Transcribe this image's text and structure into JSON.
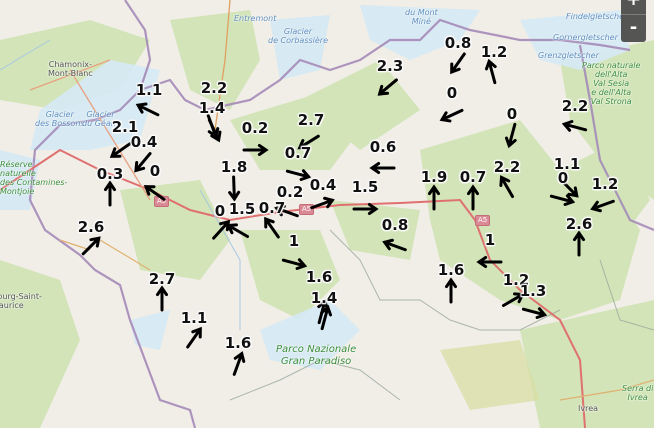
{
  "map": {
    "zoom_in_label": "+",
    "zoom_out_label": "-",
    "places": [
      {
        "name": "Chamonix-\nMont-Blanc",
        "kind": "town"
      },
      {
        "name": "Entremont",
        "kind": "water"
      },
      {
        "name": "Glacier\nde Corbassière",
        "kind": "water"
      },
      {
        "name": "du Mont\nMiné",
        "kind": "water"
      },
      {
        "name": "Findelgletscher",
        "kind": "water"
      },
      {
        "name": "Gornergletscher",
        "kind": "water"
      },
      {
        "name": "Grenzgletscher",
        "kind": "water"
      },
      {
        "name": "Parco naturale\ndell'Alta\nVal Sesia\ne dell'Alta\nVal Strona",
        "kind": "park"
      },
      {
        "name": "Glacier\ndes Bossons",
        "kind": "water"
      },
      {
        "name": "Glacier\ndu Géant",
        "kind": "water"
      },
      {
        "name": "Réserve\nnaturelle\ndes Contamines-\nMontjoie",
        "kind": "park"
      },
      {
        "name": "Bourg-Saint-\nMaurice",
        "kind": "town"
      },
      {
        "name": "Parco Nazionale\nGran Paradiso",
        "kind": "park"
      },
      {
        "name": "Serra di\nIvrea",
        "kind": "park"
      },
      {
        "name": "Ivrea",
        "kind": "town"
      }
    ],
    "road_shields": [
      "A5",
      "A5",
      "A5"
    ],
    "arrow_color": "#000000",
    "wind_markers": [
      {
        "value": "1.1",
        "direction_deg": 206
      },
      {
        "value": "2.2",
        "direction_deg": 70
      },
      {
        "value": "1.4",
        "direction_deg": 65
      },
      {
        "value": "0.2",
        "direction_deg": 0
      },
      {
        "value": "2.7",
        "direction_deg": 148
      },
      {
        "value": "0.7",
        "direction_deg": 15
      },
      {
        "value": "2.1",
        "direction_deg": 145
      },
      {
        "value": "0.4",
        "direction_deg": 130
      },
      {
        "value": "0",
        "direction_deg": 215
      },
      {
        "value": "0.3",
        "direction_deg": 270
      },
      {
        "value": "2.6",
        "direction_deg": 315
      },
      {
        "value": "1.8",
        "direction_deg": 88
      },
      {
        "value": "0",
        "direction_deg": 312
      },
      {
        "value": "1.5",
        "direction_deg": 210
      },
      {
        "value": "0.7",
        "direction_deg": 235
      },
      {
        "value": "0.2",
        "direction_deg": 200
      },
      {
        "value": "0.4",
        "direction_deg": 340
      },
      {
        "value": "1.5",
        "direction_deg": 0
      },
      {
        "value": "0.6",
        "direction_deg": 180
      },
      {
        "value": "2.3",
        "direction_deg": 140
      },
      {
        "value": "0.8",
        "direction_deg": 125
      },
      {
        "value": "1.2",
        "direction_deg": 255
      },
      {
        "value": "0",
        "direction_deg": 155
      },
      {
        "value": "0",
        "direction_deg": 105
      },
      {
        "value": "2.2",
        "direction_deg": 195
      },
      {
        "value": "1.9",
        "direction_deg": 270
      },
      {
        "value": "0.7",
        "direction_deg": 270
      },
      {
        "value": "2.2",
        "direction_deg": 240
      },
      {
        "value": "1.1",
        "direction_deg": 45
      },
      {
        "value": "0",
        "direction_deg": 15
      },
      {
        "value": "1.2",
        "direction_deg": 160
      },
      {
        "value": "2.6",
        "direction_deg": 270
      },
      {
        "value": "0.8",
        "direction_deg": 200
      },
      {
        "value": "1",
        "direction_deg": 15
      },
      {
        "value": "1",
        "direction_deg": 180
      },
      {
        "value": "1.6",
        "direction_deg": 270
      },
      {
        "value": "1.6",
        "direction_deg": 285
      },
      {
        "value": "1.4",
        "direction_deg": 285
      },
      {
        "value": "1.2",
        "direction_deg": 330
      },
      {
        "value": "1.3",
        "direction_deg": 15
      },
      {
        "value": "2.7",
        "direction_deg": 270
      },
      {
        "value": "1.1",
        "direction_deg": 305
      },
      {
        "value": "1.6",
        "direction_deg": 290
      }
    ]
  }
}
